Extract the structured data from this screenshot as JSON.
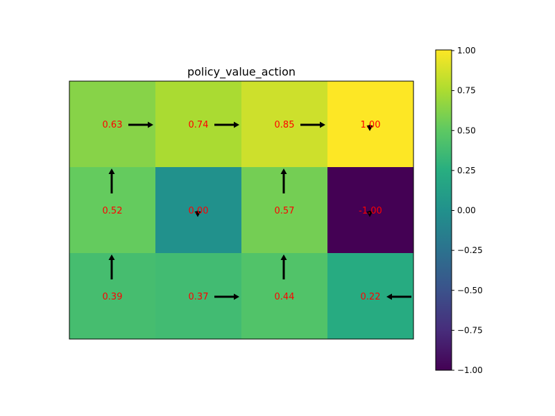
{
  "chart_data": {
    "type": "heatmap",
    "title": "policy_value_action",
    "rows": 3,
    "cols": 4,
    "values": [
      [
        0.63,
        0.74,
        0.85,
        1.0
      ],
      [
        0.52,
        0.0,
        0.57,
        -1.0
      ],
      [
        0.39,
        0.37,
        0.44,
        0.22
      ]
    ],
    "value_labels": [
      [
        "0.63",
        "0.74",
        "0.85",
        "1.00"
      ],
      [
        "0.52",
        "0.00",
        "0.57",
        "-1.00"
      ],
      [
        "0.39",
        "0.37",
        "0.44",
        "0.22"
      ]
    ],
    "actions": [
      [
        "right",
        "right",
        "right",
        "down"
      ],
      [
        "up",
        "down",
        "up",
        "down"
      ],
      [
        "up",
        "right",
        "up",
        "left"
      ]
    ],
    "colormap": "viridis",
    "vmin": -1.0,
    "vmax": 1.0,
    "colorbar_ticks": [
      "1.00",
      "0.75",
      "0.50",
      "0.25",
      "0.00",
      "−0.25",
      "−0.50",
      "−0.75",
      "−1.00"
    ],
    "colorbar_tick_values": [
      1.0,
      0.75,
      0.5,
      0.25,
      0.0,
      -0.25,
      -0.5,
      -0.75,
      -1.0
    ],
    "value_text_color": "#ff0000",
    "arrow_color": "#000000"
  }
}
